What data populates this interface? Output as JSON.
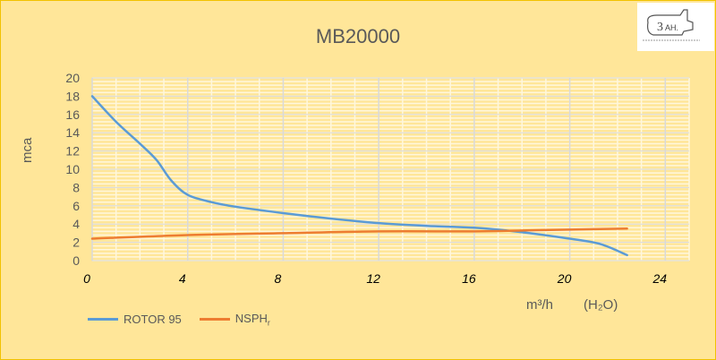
{
  "chart_data": {
    "type": "line",
    "title": "MB20000",
    "ylabel": "mca",
    "xlabel": "m³/h",
    "xlabel_note": "(H₂O)",
    "xlim": [
      0,
      25
    ],
    "ylim": [
      0,
      20
    ],
    "xticks": [
      0,
      4,
      8,
      12,
      16,
      20,
      24
    ],
    "yticks": [
      0,
      2,
      4,
      6,
      8,
      10,
      12,
      14,
      16,
      18,
      20
    ],
    "grid": true,
    "legend_position": "bottom-left",
    "series": [
      {
        "name": "ROTOR 95",
        "color": "#5B9BD5",
        "x": [
          0,
          1,
          2,
          2.7,
          3.3,
          4,
          5,
          6,
          8,
          10,
          12,
          14,
          16,
          17.7,
          20,
          21.3,
          22.4
        ],
        "y": [
          18,
          15.2,
          12.8,
          11,
          8.8,
          7.2,
          6.4,
          5.9,
          5.2,
          4.6,
          4.1,
          3.8,
          3.6,
          3.2,
          2.4,
          1.8,
          0.6
        ]
      },
      {
        "name": "NSPH",
        "name_subscript": "r",
        "color": "#ED7D31",
        "x": [
          0,
          4,
          8,
          12,
          16,
          18,
          20,
          22.4
        ],
        "y": [
          2.4,
          2.8,
          3.0,
          3.2,
          3.2,
          3.3,
          3.4,
          3.5
        ]
      }
    ]
  },
  "logo": {
    "text": "3aH"
  }
}
